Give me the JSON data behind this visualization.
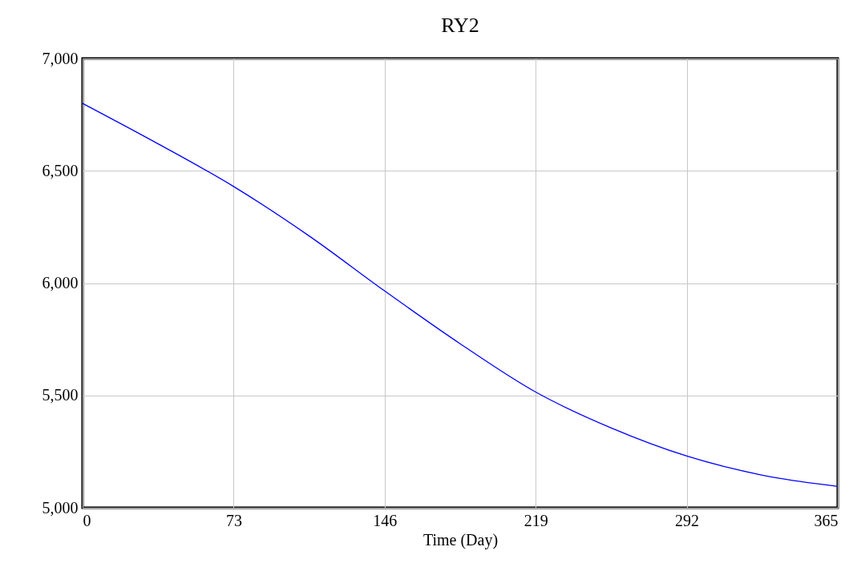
{
  "chart_data": {
    "type": "line",
    "title": "RY2",
    "xlabel": "Time (Day)",
    "x": [
      0,
      36.5,
      73,
      109.5,
      146,
      182.5,
      219,
      255.5,
      292,
      328.5,
      365
    ],
    "series": [
      {
        "color": "#0000ff",
        "values": [
          6800,
          6620,
          6430,
          6210,
          5965,
          5730,
          5515,
          5355,
          5230,
          5145,
          5095
        ]
      }
    ],
    "xlim": [
      0,
      365
    ],
    "xticks": [
      0,
      73,
      146,
      219,
      292,
      365
    ],
    "ylim": [
      5000,
      7000
    ],
    "yticks": [
      {
        "value": 5000,
        "label": "5,000"
      },
      {
        "value": 5500,
        "label": "5,500"
      },
      {
        "value": 6000,
        "label": "6,000"
      },
      {
        "value": 6500,
        "label": "6,500"
      },
      {
        "value": 7000,
        "label": "7,000"
      }
    ],
    "grid": true,
    "marker": "none",
    "line_style": "solid"
  }
}
